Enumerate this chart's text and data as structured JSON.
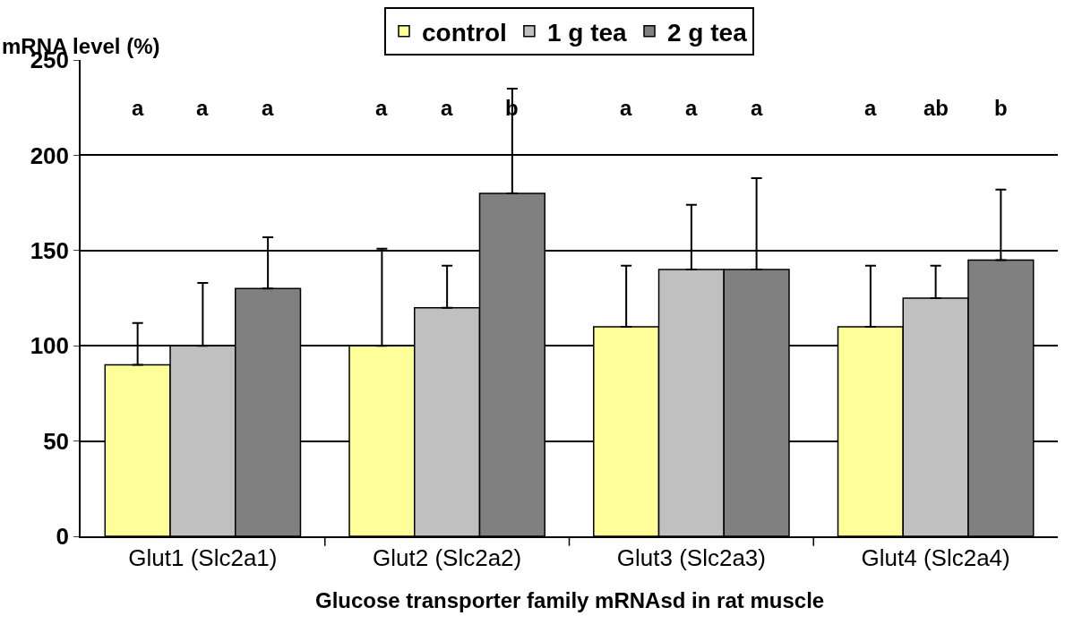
{
  "chart_data": {
    "type": "bar",
    "ylabel": "mRNA level (%)",
    "xlabel": "Glucose transporter family mRNAsd in rat muscle",
    "categories": [
      "Glut1 (Slc2a1)",
      "Glut2 (Slc2a2)",
      "Glut3 (Slc2a3)",
      "Glut4 (Slc2a4)"
    ],
    "series": [
      {
        "name": "control",
        "color": "#ffff99",
        "values": [
          90,
          100,
          110,
          110
        ],
        "errors": [
          [
            90,
            112
          ],
          [
            100,
            151
          ],
          [
            110,
            142
          ],
          [
            110,
            142
          ]
        ]
      },
      {
        "name": "1 g tea",
        "color": "#c0c0c0",
        "values": [
          100,
          120,
          140,
          125
        ],
        "errors": [
          [
            100,
            133
          ],
          [
            120,
            142
          ],
          [
            140,
            174
          ],
          [
            125,
            142
          ]
        ]
      },
      {
        "name": "2 g tea",
        "color": "#808080",
        "values": [
          130,
          180,
          140,
          145
        ],
        "errors": [
          [
            130,
            157
          ],
          [
            180,
            235
          ],
          [
            140,
            188
          ],
          [
            145,
            182
          ]
        ]
      }
    ],
    "annotations": [
      "a",
      "a",
      "a",
      "a",
      "a",
      "b",
      "a",
      "a",
      "a",
      "a",
      "ab",
      "b"
    ],
    "ylim": [
      0,
      250
    ],
    "yticks": [
      0,
      50,
      100,
      150,
      200,
      250
    ],
    "grid": "y",
    "legend": "top"
  }
}
